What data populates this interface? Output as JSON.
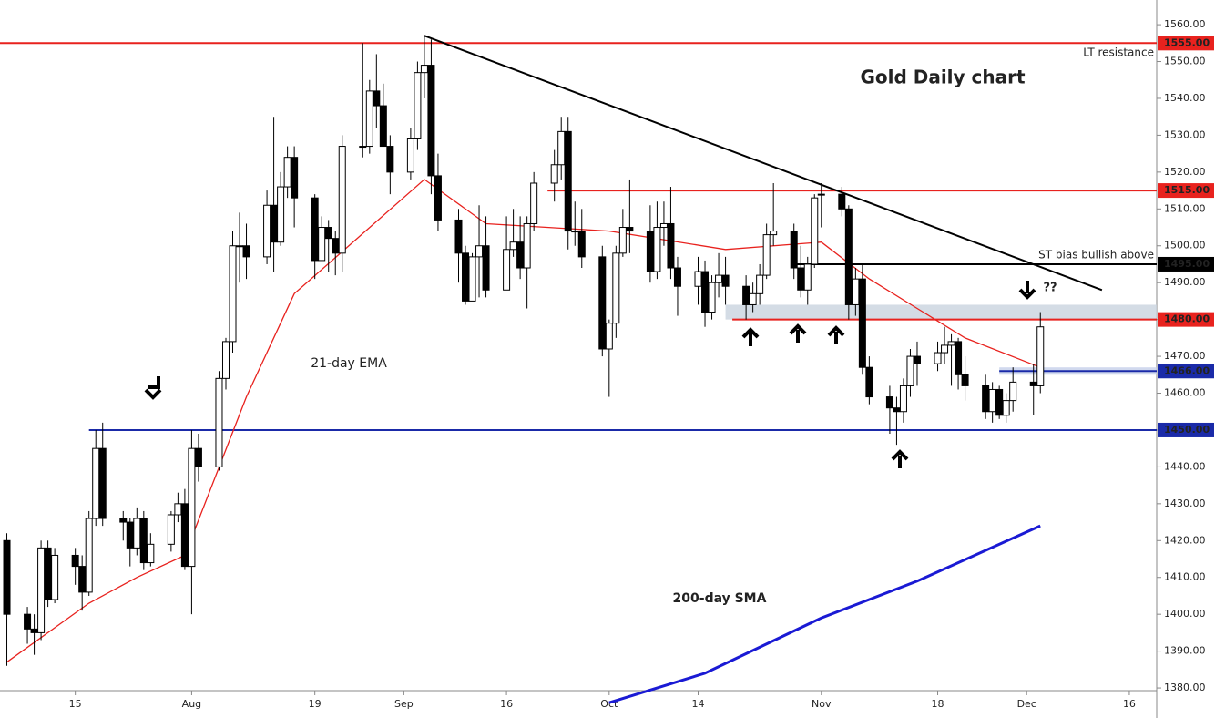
{
  "chart_data": {
    "type": "candlestick",
    "title": "Gold Daily chart",
    "xlim": [
      185,
      354
    ],
    "xticks": [
      {
        "value": 196,
        "label": "15"
      },
      {
        "value": 213,
        "label": "Aug"
      },
      {
        "value": 231,
        "label": "19"
      },
      {
        "value": 244,
        "label": "Sep"
      },
      {
        "value": 259,
        "label": "16"
      },
      {
        "value": 274,
        "label": "Oct"
      },
      {
        "value": 287,
        "label": "14"
      },
      {
        "value": 305,
        "label": "Nov"
      },
      {
        "value": 322,
        "label": "18"
      },
      {
        "value": 335,
        "label": "Dec"
      },
      {
        "value": 350,
        "label": "16"
      }
    ],
    "ylim": [
      1376.8,
      1562
    ],
    "yticks": [
      {
        "value": 1380,
        "label": "1380.00"
      },
      {
        "value": 1390,
        "label": "1390.00"
      },
      {
        "value": 1400,
        "label": "1400.00"
      },
      {
        "value": 1410,
        "label": "1410.00"
      },
      {
        "value": 1420,
        "label": "1420.00"
      },
      {
        "value": 1430,
        "label": "1430.00"
      },
      {
        "value": 1440,
        "label": "1440.00"
      },
      {
        "value": 1450,
        "label": "1450.00"
      },
      {
        "value": 1460,
        "label": "1460.00"
      },
      {
        "value": 1470,
        "label": "1470.00"
      },
      {
        "value": 1480,
        "label": "1480.00"
      },
      {
        "value": 1490,
        "label": "1490.00"
      },
      {
        "value": 1500,
        "label": "1500.00"
      },
      {
        "value": 1510,
        "label": "1510.00"
      },
      {
        "value": 1520,
        "label": "1520.00"
      },
      {
        "value": 1530,
        "label": "1530.00"
      },
      {
        "value": 1540,
        "label": "1540.00"
      },
      {
        "value": 1550,
        "label": "1550.00"
      },
      {
        "value": 1560,
        "label": "1560.00"
      }
    ],
    "up_color": "#ffffff",
    "down_color": "#000000",
    "candles": {
      "x": [
        186,
        189,
        190,
        191,
        192,
        193,
        196,
        197,
        198,
        199,
        200,
        203,
        204,
        205,
        206,
        207,
        210,
        211,
        212,
        213,
        214,
        217,
        218,
        219,
        220,
        221,
        224,
        225,
        226,
        227,
        228,
        231,
        232,
        233,
        234,
        235,
        238,
        239,
        240,
        241,
        242,
        245,
        246,
        247,
        248,
        249,
        252,
        253,
        254,
        255,
        256,
        259,
        260,
        261,
        262,
        263,
        266,
        267,
        268,
        269,
        270,
        273,
        274,
        275,
        276,
        277,
        280,
        281,
        282,
        283,
        284,
        287,
        288,
        289,
        290,
        291,
        294,
        295,
        296,
        297,
        298,
        301,
        302,
        303,
        304,
        305,
        308,
        309,
        310,
        311,
        312,
        315,
        316,
        317,
        318,
        319,
        322,
        323,
        324,
        325,
        326,
        329,
        330,
        331,
        332,
        333,
        336,
        337
      ],
      "open": [
        1420,
        1400,
        1396,
        1395,
        1418,
        1404,
        1416,
        1413,
        1406,
        1426,
        1445,
        1426,
        1425,
        1418,
        1426,
        1414,
        1419,
        1427,
        1430,
        1413,
        1445,
        1440,
        1464,
        1474,
        1500,
        1500,
        1497,
        1511,
        1501,
        1516,
        1524,
        1513,
        1496,
        1505,
        1502,
        1498,
        1527,
        1527,
        1542,
        1538,
        1527,
        1520,
        1529,
        1547,
        1549,
        1519,
        1507,
        1498,
        1485,
        1497,
        1500,
        1488,
        1499,
        1501,
        1494,
        1506,
        1517,
        1522,
        1531,
        1504,
        1504,
        1497,
        1472,
        1479,
        1498,
        1505,
        1504,
        1493,
        1505,
        1506,
        1494,
        1489,
        1493,
        1482,
        1490,
        1492,
        1489,
        1484,
        1487,
        1492,
        1503,
        1504,
        1494,
        1488,
        1495,
        1514,
        1514,
        1510,
        1484,
        1491,
        1467,
        1459,
        1456,
        1455,
        1462,
        1470,
        1468,
        1471,
        1473,
        1474,
        1465,
        1462,
        1455,
        1461,
        1454,
        1458,
        1463,
        1462
      ],
      "high": [
        1422,
        1402,
        1400,
        1420,
        1420,
        1418,
        1418,
        1416,
        1428,
        1450,
        1452,
        1428,
        1426,
        1429,
        1428,
        1422,
        1428,
        1433,
        1434,
        1450,
        1449,
        1466,
        1475,
        1504,
        1509,
        1506,
        1515,
        1535,
        1520,
        1527,
        1527,
        1514,
        1508,
        1507,
        1504,
        1530,
        1555,
        1545,
        1552,
        1544,
        1530,
        1532,
        1550,
        1557,
        1556,
        1525,
        1510,
        1500,
        1498,
        1511,
        1508,
        1508,
        1510,
        1508,
        1508,
        1520,
        1526,
        1535,
        1535,
        1512,
        1510,
        1500,
        1480,
        1500,
        1510,
        1518,
        1511,
        1512,
        1512,
        1516,
        1497,
        1497,
        1496,
        1492,
        1498,
        1497,
        1492,
        1490,
        1495,
        1506,
        1517,
        1506,
        1500,
        1497,
        1514,
        1517,
        1516,
        1511,
        1494,
        1495,
        1470,
        1462,
        1459,
        1464,
        1472,
        1474,
        1474,
        1478,
        1476,
        1475,
        1470,
        1465,
        1463,
        1462,
        1460,
        1467,
        1468,
        1482
      ],
      "low": [
        1386,
        1392,
        1389,
        1393,
        1402,
        1403,
        1408,
        1401,
        1405,
        1424,
        1424,
        1420,
        1413,
        1416,
        1412,
        1413,
        1417,
        1425,
        1412,
        1400,
        1436,
        1439,
        1461,
        1471,
        1490,
        1491,
        1495,
        1493,
        1500,
        1513,
        1505,
        1491,
        1496,
        1493,
        1492,
        1493,
        1524,
        1525,
        1532,
        1527,
        1514,
        1518,
        1526,
        1540,
        1514,
        1504,
        1490,
        1484,
        1485,
        1486,
        1486,
        1488,
        1497,
        1491,
        1483,
        1504,
        1512,
        1518,
        1499,
        1500,
        1494,
        1470,
        1459,
        1475,
        1497,
        1498,
        1490,
        1491,
        1500,
        1491,
        1481,
        1484,
        1478,
        1480,
        1486,
        1484,
        1480,
        1482,
        1484,
        1491,
        1500,
        1491,
        1486,
        1484,
        1494,
        1505,
        1508,
        1480,
        1481,
        1465,
        1457,
        1449,
        1446,
        1452,
        1459,
        1462,
        1466,
        1468,
        1462,
        1461,
        1458,
        1453,
        1452,
        1453,
        1452,
        1455,
        1454,
        1460
      ],
      "close": [
        1400,
        1396,
        1395,
        1418,
        1404,
        1416,
        1413,
        1406,
        1426,
        1445,
        1426,
        1425,
        1418,
        1426,
        1414,
        1419,
        1427,
        1430,
        1413,
        1445,
        1440,
        1464,
        1474,
        1500,
        1500,
        1497,
        1511,
        1501,
        1516,
        1524,
        1513,
        1496,
        1505,
        1502,
        1498,
        1527,
        1527,
        1542,
        1538,
        1527,
        1520,
        1529,
        1547,
        1549,
        1519,
        1507,
        1498,
        1485,
        1497,
        1500,
        1488,
        1499,
        1501,
        1494,
        1506,
        1517,
        1522,
        1531,
        1504,
        1504,
        1497,
        1472,
        1479,
        1498,
        1505,
        1504,
        1493,
        1505,
        1506,
        1494,
        1489,
        1493,
        1482,
        1490,
        1492,
        1489,
        1484,
        1487,
        1492,
        1503,
        1504,
        1494,
        1488,
        1495,
        1513,
        1514,
        1510,
        1484,
        1491,
        1467,
        1459,
        1456,
        1455,
        1462,
        1470,
        1468,
        1471,
        1473,
        1474,
        1465,
        1462,
        1455,
        1461,
        1454,
        1458,
        1463,
        1462,
        1478
      ]
    },
    "series": [
      {
        "name": "21-day EMA",
        "color": "#e8221e",
        "x": [
          186,
          198,
          205,
          212,
          221,
          228,
          247,
          256,
          274,
          291,
          305,
          312,
          319,
          326,
          337
        ],
        "values": [
          1387,
          1403,
          1410,
          1416,
          1459,
          1487,
          1518,
          1506,
          1504,
          1499,
          1501,
          1491,
          1483,
          1475,
          1467
        ]
      },
      {
        "name": "200-day SMA",
        "color": "#1a1ad4",
        "x": [
          274,
          288,
          305,
          319,
          337
        ],
        "values": [
          1376,
          1384,
          1399,
          1409,
          1424
        ]
      }
    ],
    "levels": [
      {
        "value": 1555,
        "label": "1555.00",
        "color": "#e8221e",
        "from": 185
      },
      {
        "value": 1515,
        "label": "1515.00",
        "color": "#e8221e",
        "from": 265
      },
      {
        "value": 1495,
        "label": "1495.00",
        "color": "#000000",
        "from": 301
      },
      {
        "value": 1480,
        "label": "1480.00",
        "color": "#e8221e",
        "from": 292
      },
      {
        "value": 1466,
        "label": "1466.00",
        "color": "#1a2aa8",
        "from": 331
      },
      {
        "value": 1450,
        "label": "1450.00",
        "color": "#1a2aa8",
        "from": 198
      }
    ],
    "zones": [
      {
        "from": 291,
        "values": [
          1480,
          1484
        ],
        "color": "#c9d3df"
      },
      {
        "from": 331,
        "values": [
          1465,
          1467
        ],
        "color": "#c5d0ea"
      }
    ],
    "trendline": {
      "x": [
        247,
        346
      ],
      "values": [
        1557,
        1488
      ]
    },
    "annotations": [
      "LT resistance",
      "ST bias bullish above",
      "21-day EMA",
      "200-day SMA",
      "??"
    ]
  }
}
